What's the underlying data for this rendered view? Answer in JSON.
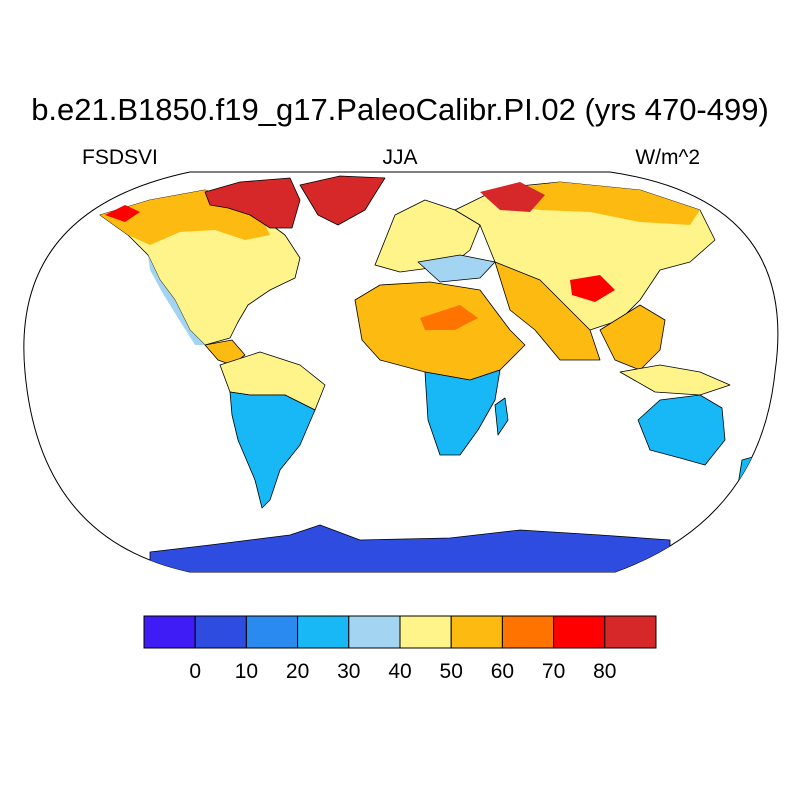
{
  "title": "b.e21.B1850.f19_g17.PaleoCalibr.PI.02 (yrs 470-499)",
  "left_label": "FSDSVI",
  "center_label": "JJA",
  "right_label": "W/m^2",
  "colorbar": {
    "colors": [
      "#3f1bf5",
      "#2e4de0",
      "#2b8af0",
      "#17b8f5",
      "#a3d4f2",
      "#fff48a",
      "#fdbb12",
      "#ff7300",
      "#ff0000",
      "#d62828"
    ],
    "tick_labels": [
      "0",
      "10",
      "20",
      "30",
      "40",
      "50",
      "60",
      "70",
      "80"
    ]
  },
  "map_colors": {
    "ocean": "#ffffff",
    "coastline": "#000000"
  }
}
